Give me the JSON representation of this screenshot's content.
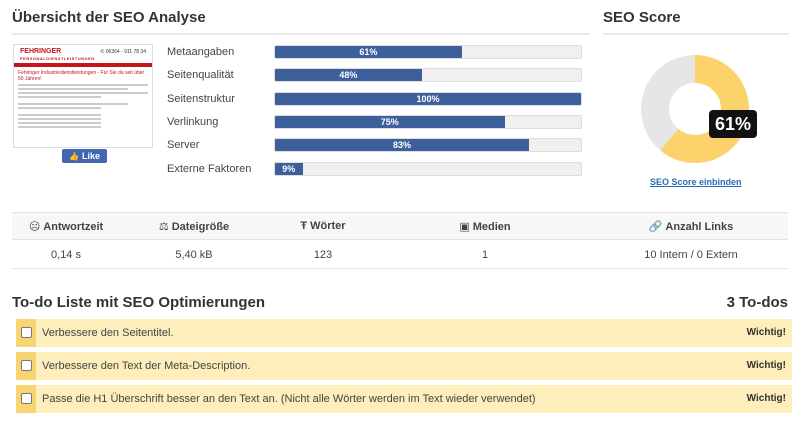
{
  "overview": {
    "title": "Übersicht der SEO Analyse",
    "thumbnail": {
      "logo": "FEHRINGER",
      "logo_sub": "PERSONALDIENSTLEISTUNGEN",
      "phone": "✆ 06364 - 911 78 34",
      "heading": "Fehringer Industriedienstleistungen - Für Sie da seit über 50 Jahren!"
    },
    "like_label": "Like",
    "metrics": [
      {
        "label": "Metaangaben",
        "value": 61,
        "text": "61%"
      },
      {
        "label": "Seitenqualität",
        "value": 48,
        "text": "48%"
      },
      {
        "label": "Seitenstruktur",
        "value": 100,
        "text": "100%"
      },
      {
        "label": "Verlinkung",
        "value": 75,
        "text": "75%"
      },
      {
        "label": "Server",
        "value": 83,
        "text": "83%"
      },
      {
        "label": "Externe Faktoren",
        "value": 9,
        "text": "9%"
      }
    ]
  },
  "score": {
    "title": "SEO Score",
    "value": 61,
    "text": "61%",
    "embed_link": "SEO Score einbinden",
    "colors": {
      "filled": "#fcd36b",
      "empty": "#e6e6e6"
    }
  },
  "stats": {
    "columns": [
      {
        "icon": "clock-icon",
        "glyph": "☹",
        "label": "Antwortzeit",
        "value": "0,14 s"
      },
      {
        "icon": "balance-icon",
        "glyph": "⚖",
        "label": "Dateigröße",
        "value": "5,40 kB"
      },
      {
        "icon": "text-icon",
        "glyph": "Ŧ",
        "label": "Wörter",
        "value": "123"
      },
      {
        "icon": "image-icon",
        "glyph": "▣",
        "label": "Medien",
        "value": "1"
      },
      {
        "icon": "link-icon",
        "glyph": "🔗",
        "label": "Anzahl Links",
        "value": "10 Intern / 0 Extern"
      }
    ]
  },
  "todo": {
    "title": "To-do Liste mit SEO Optimierungen",
    "count": "3 To-dos",
    "items": [
      {
        "text": "Verbessere den Seitentitel.",
        "priority": "Wichtig!"
      },
      {
        "text": "Verbessere den Text der Meta-Description.",
        "priority": "Wichtig!"
      },
      {
        "text": "Passe die H1 Überschrift besser an den Text an. (Nicht alle Wörter werden im Text wieder verwendet)",
        "priority": "Wichtig!"
      }
    ]
  },
  "colors": {
    "bar": "#3d5f9c",
    "todo_bg": "#fdeebb",
    "todo_stripe": "#f7d572",
    "link": "#2a6db5"
  }
}
